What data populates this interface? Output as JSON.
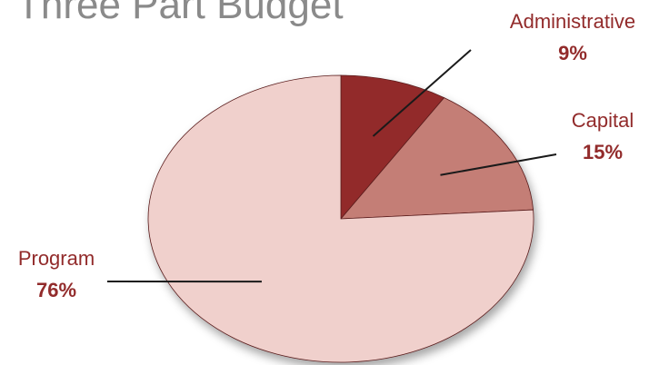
{
  "chart_data": {
    "type": "pie",
    "title": "Three Part Budget",
    "slices": [
      {
        "label": "Administrative",
        "value": 9,
        "value_label": "9%",
        "color": "#922b2b"
      },
      {
        "label": "Capital",
        "value": 15,
        "value_label": "15%",
        "color": "#c47e76"
      },
      {
        "label": "Program",
        "value": 76,
        "value_label": "76%",
        "color": "#f0d0cc"
      }
    ],
    "label_color": "#922b2b",
    "legend": "none"
  }
}
